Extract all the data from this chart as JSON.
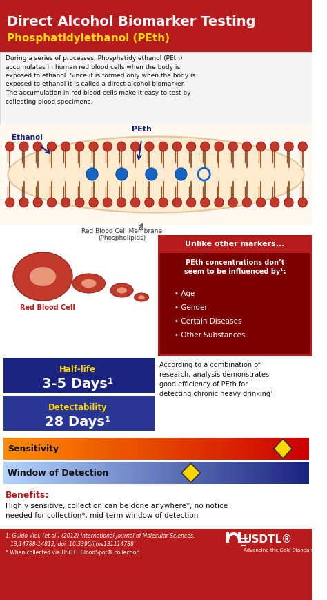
{
  "title_line1": "Direct Alcohol Biomarker Testing",
  "title_line2": "Phosphatidylethanol (PEth)",
  "title_bg": "#B71C1C",
  "title_color": "#FFFFFF",
  "subtitle_color": "#FFD700",
  "body_bg": "#FFFFFF",
  "text_color": "#000000",
  "red_dark": "#B71C1C",
  "red_medium": "#C62828",
  "blue_dark": "#1A237E",
  "blue_medium": "#283593",
  "gold": "#FFD700",
  "orange": "#E65100",
  "intro_text": "During a series of processes, Phosphatidylethanol (PEth)\naccumulates in human red blood cells when the body is\nexposed to ethanol. Since it is formed only when the body is\nexposed to ethanol it is called a direct alcohol biomarker.\nThe accumulation in red blood cells make it easy to test by\ncollecting blood specimens.",
  "halflife_label": "Half-life",
  "halflife_value": "3-5 Days¹",
  "detect_label": "Detectability",
  "detect_value": "28 Days¹",
  "unlike_title": "Unlike other markers...",
  "peth_box_title": "PEth concentrations don’t\nseem to be influenced by¹:",
  "peth_bullets": [
    "Age",
    "Gender",
    "Certain Diseases",
    "Other Substances"
  ],
  "efficiency_text": "According to a combination of\nresearch, analysis demonstrates\ngood efficiency of PEth for\ndetecting chronic heavy drinking¹",
  "sensitivity_label": "Sensitivity",
  "window_label": "Window of Detection",
  "benefits_label": "Benefits:",
  "benefits_text": "Highly sensitive, collection can be done anywhere*, no notice\nneeded for collection*, mid-term window of detection",
  "footnote1": "1. Guido Viel, (et al.) (2012) International Journal of Molecular Sciences,",
  "footnote2": "   13,14788-14812, doi: 10.3390/ijms131114788",
  "footnote3": "* When collected via USDTL BloodSpot® collection",
  "usdtl_text": "USDTL®",
  "usdtl_sub": "Advancing the Gold Standard",
  "membrane_label": "Red Blood Cell Membrane\n(Phospholipids)",
  "ethanol_label": "Ethanol",
  "peth_label": "PEth",
  "rbc_label": "Red Blood Cell"
}
